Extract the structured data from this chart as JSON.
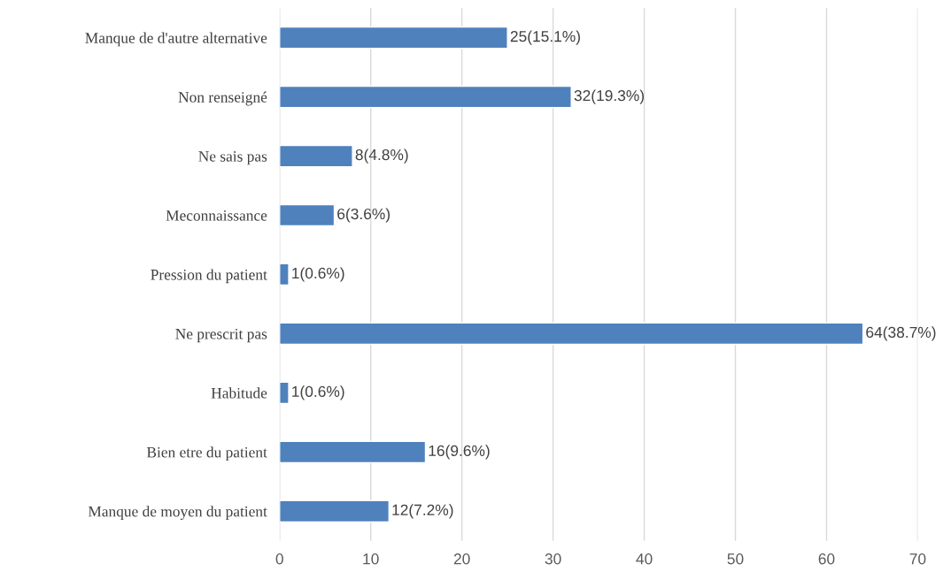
{
  "chart_data": {
    "type": "bar",
    "orientation": "horizontal",
    "categories": [
      "Manque de d'autre alternative",
      "Non renseigné",
      "Ne sais pas",
      "Meconnaissance",
      "Pression du patient",
      "Ne prescrit pas",
      "Habitude",
      "Bien etre du patient",
      "Manque de moyen du patient"
    ],
    "values": [
      25,
      32,
      8,
      6,
      1,
      64,
      1,
      16,
      12
    ],
    "value_labels": [
      "25(15.1%)",
      "32(19.3%)",
      "8(4.8%)",
      "6(3.6%)",
      "1(0.6%)",
      "64(38.7%)",
      "1(0.6%)",
      "16(9.6%)",
      "12(7.2%)"
    ],
    "color": "#4f81bd",
    "xlim": [
      0,
      70
    ],
    "xticks": [
      0,
      10,
      20,
      30,
      40,
      50,
      60,
      70
    ],
    "grid": "x",
    "legend": false
  }
}
